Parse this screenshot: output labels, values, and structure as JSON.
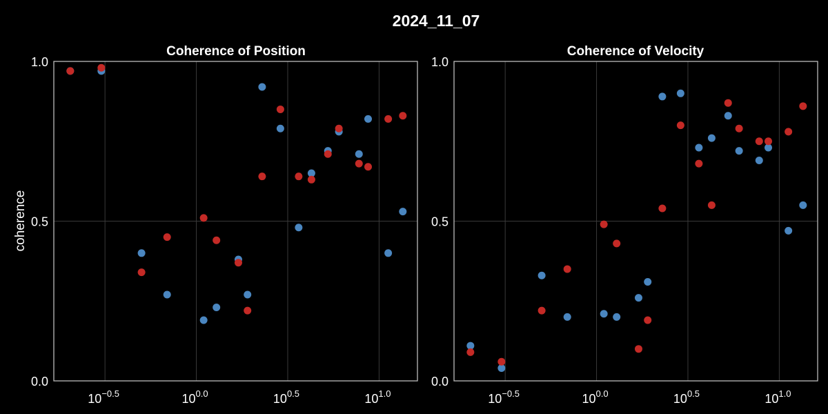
{
  "figure": {
    "title": "2024_11_07"
  },
  "chart_data": [
    {
      "type": "scatter",
      "title": "Coherence of Position",
      "xlabel": "",
      "ylabel": "coherence",
      "xscale": "log10",
      "xlim_log10": [
        -0.78,
        1.21
      ],
      "ylim": [
        0.0,
        1.0
      ],
      "x_ticks": [
        {
          "base": "10",
          "exp": "−0.5",
          "log10": -0.5
        },
        {
          "base": "10",
          "exp": "0.0",
          "log10": 0.0
        },
        {
          "base": "10",
          "exp": "0.5",
          "log10": 0.5
        },
        {
          "base": "10",
          "exp": "1.0",
          "log10": 1.0
        }
      ],
      "y_ticks": [
        {
          "label": "0.0",
          "value": 0.0
        },
        {
          "label": "0.5",
          "value": 0.5
        },
        {
          "label": "1.0",
          "value": 1.0
        }
      ],
      "grid": true,
      "series": [
        {
          "color": "#4a86c0",
          "points": [
            [
              -0.69,
              0.97
            ],
            [
              -0.52,
              0.97
            ],
            [
              -0.3,
              0.4
            ],
            [
              -0.16,
              0.27
            ],
            [
              0.04,
              0.19
            ],
            [
              0.11,
              0.23
            ],
            [
              0.23,
              0.38
            ],
            [
              0.28,
              0.27
            ],
            [
              0.36,
              0.92
            ],
            [
              0.46,
              0.79
            ],
            [
              0.56,
              0.48
            ],
            [
              0.63,
              0.65
            ],
            [
              0.72,
              0.72
            ],
            [
              0.78,
              0.78
            ],
            [
              0.89,
              0.71
            ],
            [
              0.94,
              0.82
            ],
            [
              1.05,
              0.4
            ],
            [
              1.13,
              0.53
            ]
          ]
        },
        {
          "color": "#c42a26",
          "points": [
            [
              -0.69,
              0.97
            ],
            [
              -0.52,
              0.98
            ],
            [
              -0.3,
              0.34
            ],
            [
              -0.16,
              0.45
            ],
            [
              0.04,
              0.51
            ],
            [
              0.11,
              0.44
            ],
            [
              0.23,
              0.37
            ],
            [
              0.28,
              0.22
            ],
            [
              0.36,
              0.64
            ],
            [
              0.46,
              0.85
            ],
            [
              0.56,
              0.64
            ],
            [
              0.63,
              0.63
            ],
            [
              0.72,
              0.71
            ],
            [
              0.78,
              0.79
            ],
            [
              0.89,
              0.68
            ],
            [
              0.94,
              0.67
            ],
            [
              1.05,
              0.82
            ],
            [
              1.13,
              0.83
            ]
          ]
        }
      ]
    },
    {
      "type": "scatter",
      "title": "Coherence of Velocity",
      "xlabel": "",
      "ylabel": "",
      "xscale": "log10",
      "xlim_log10": [
        -0.78,
        1.21
      ],
      "ylim": [
        0.0,
        1.0
      ],
      "x_ticks": [
        {
          "base": "10",
          "exp": "−0.5",
          "log10": -0.5
        },
        {
          "base": "10",
          "exp": "0.0",
          "log10": 0.0
        },
        {
          "base": "10",
          "exp": "0.5",
          "log10": 0.5
        },
        {
          "base": "10",
          "exp": "1.0",
          "log10": 1.0
        }
      ],
      "y_ticks": [
        {
          "label": "0.0",
          "value": 0.0
        },
        {
          "label": "0.5",
          "value": 0.5
        },
        {
          "label": "1.0",
          "value": 1.0
        }
      ],
      "grid": true,
      "series": [
        {
          "color": "#4a86c0",
          "points": [
            [
              -0.69,
              0.11
            ],
            [
              -0.52,
              0.04
            ],
            [
              -0.3,
              0.33
            ],
            [
              -0.16,
              0.2
            ],
            [
              0.04,
              0.21
            ],
            [
              0.11,
              0.2
            ],
            [
              0.23,
              0.26
            ],
            [
              0.28,
              0.31
            ],
            [
              0.36,
              0.89
            ],
            [
              0.46,
              0.9
            ],
            [
              0.56,
              0.73
            ],
            [
              0.63,
              0.76
            ],
            [
              0.72,
              0.83
            ],
            [
              0.78,
              0.72
            ],
            [
              0.89,
              0.69
            ],
            [
              0.94,
              0.73
            ],
            [
              1.05,
              0.47
            ],
            [
              1.13,
              0.55
            ]
          ]
        },
        {
          "color": "#c42a26",
          "points": [
            [
              -0.69,
              0.09
            ],
            [
              -0.52,
              0.06
            ],
            [
              -0.3,
              0.22
            ],
            [
              -0.16,
              0.35
            ],
            [
              0.04,
              0.49
            ],
            [
              0.11,
              0.43
            ],
            [
              0.23,
              0.1
            ],
            [
              0.28,
              0.19
            ],
            [
              0.36,
              0.54
            ],
            [
              0.46,
              0.8
            ],
            [
              0.56,
              0.68
            ],
            [
              0.63,
              0.55
            ],
            [
              0.72,
              0.87
            ],
            [
              0.78,
              0.79
            ],
            [
              0.89,
              0.75
            ],
            [
              0.94,
              0.75
            ],
            [
              1.05,
              0.78
            ],
            [
              1.13,
              0.86
            ]
          ]
        }
      ]
    }
  ]
}
